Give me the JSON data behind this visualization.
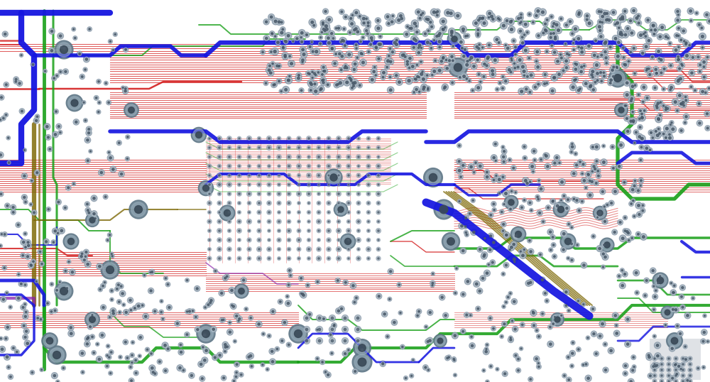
{
  "bg_color": "#ffffff",
  "colors": {
    "red": "#d42020",
    "blue": "#1515e0",
    "green": "#18a018",
    "olive": "#7a6500",
    "purple": "#8820aa",
    "gray_via": "#8a9aaa",
    "gray_via_dark": "#4a5a6a",
    "gray_via_mid": "#6a7a8a"
  },
  "figsize": [
    10.0,
    5.38
  ],
  "dpi": 100,
  "xlim": [
    0,
    1000
  ],
  "ylim": [
    0,
    538
  ]
}
